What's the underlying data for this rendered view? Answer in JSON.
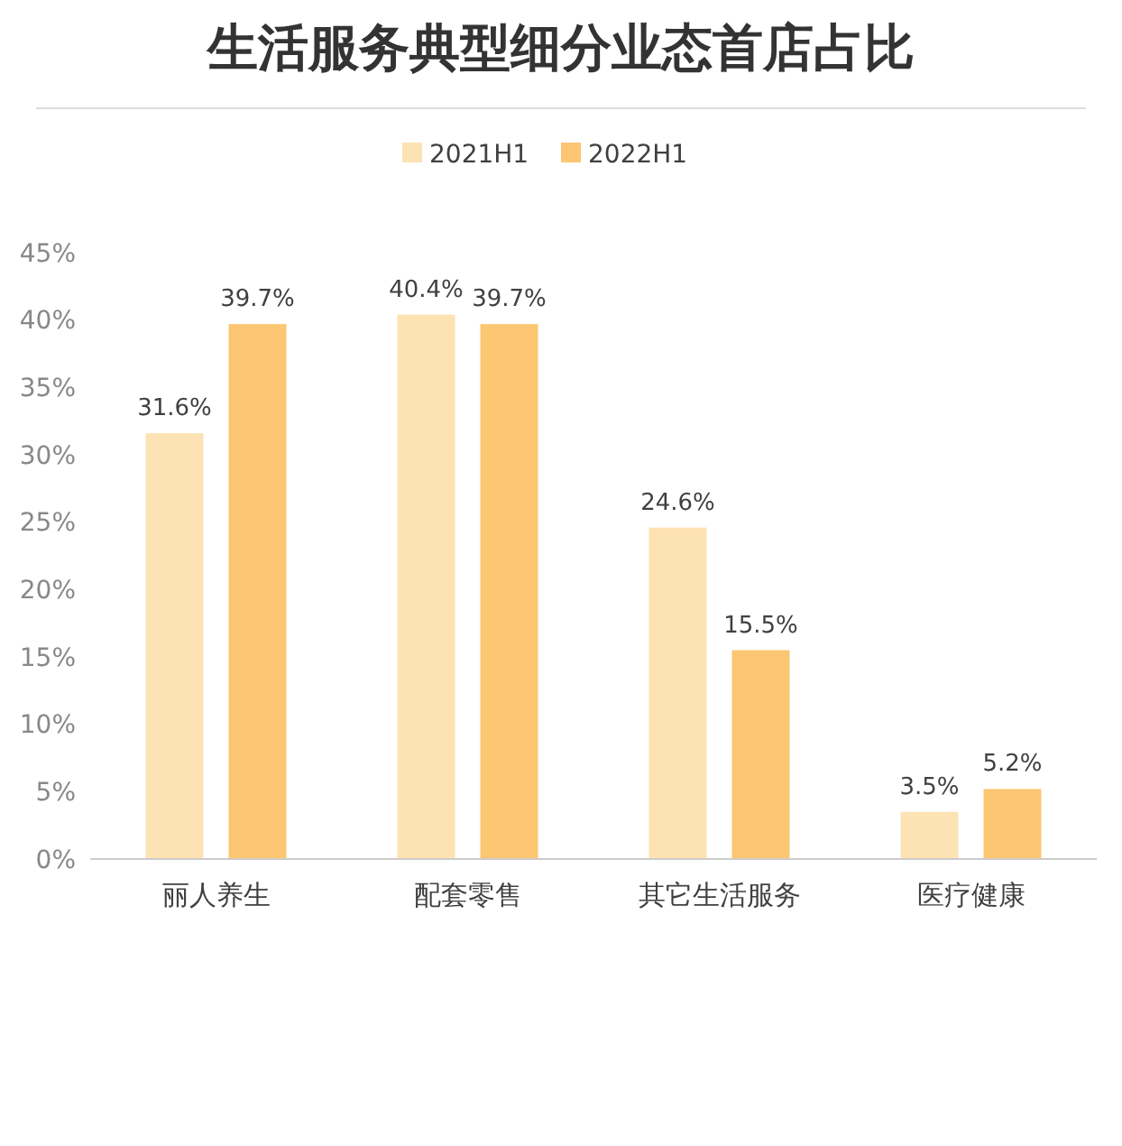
{
  "chart_data": {
    "type": "bar",
    "title": "生活服务典型细分业态首店占比",
    "categories": [
      "丽人养生",
      "配套零售",
      "其它生活服务",
      "医疗健康"
    ],
    "series": [
      {
        "name": "2021H1",
        "color": "#fde2b3",
        "values": [
          31.6,
          40.4,
          24.6,
          3.5
        ],
        "value_labels": [
          "31.6%",
          "40.4%",
          "24.6%",
          "3.5%"
        ]
      },
      {
        "name": "2022H1",
        "color": "#fdc672",
        "values": [
          39.7,
          39.7,
          15.5,
          5.2
        ],
        "value_labels": [
          "39.7%",
          "39.7%",
          "15.5%",
          "5.2%"
        ]
      }
    ],
    "ylim": [
      0,
      45
    ],
    "yticks": [
      {
        "value": 0,
        "label": "0%"
      },
      {
        "value": 5,
        "label": "5%"
      },
      {
        "value": 10,
        "label": "10%"
      },
      {
        "value": 15,
        "label": "15%"
      },
      {
        "value": 20,
        "label": "20%"
      },
      {
        "value": 25,
        "label": "25%"
      },
      {
        "value": 30,
        "label": "30%"
      },
      {
        "value": 35,
        "label": "35%"
      },
      {
        "value": 40,
        "label": "40%"
      },
      {
        "value": 45,
        "label": "45%"
      }
    ],
    "grid": false,
    "legend": "top"
  }
}
